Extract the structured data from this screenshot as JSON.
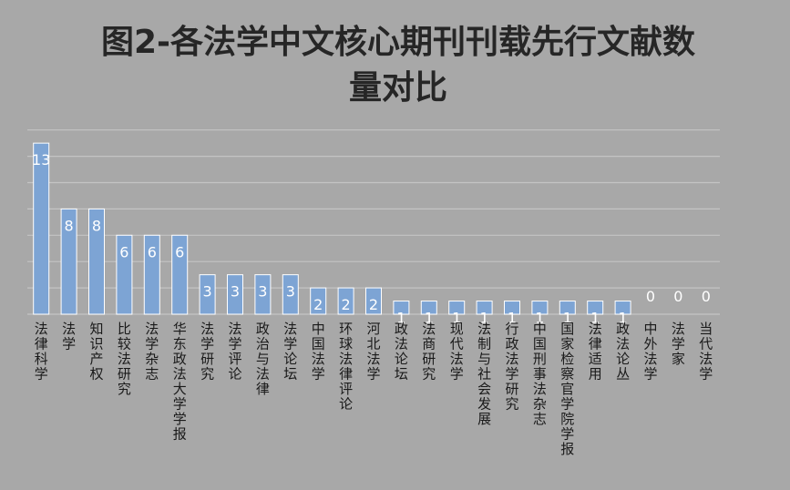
{
  "chart_data": {
    "type": "bar",
    "title": "图2-各法学中文核心期刊刊载先行文献数量对比",
    "title_lines": [
      "图2-各法学中文核心期刊刊载先行文献数",
      "量对比"
    ],
    "categories": [
      "法律科学",
      "法学",
      "知识产权",
      "比较法研究",
      "法学杂志",
      "华东政法大学学报",
      "法学研究",
      "法学评论",
      "政治与法律",
      "法学论坛",
      "中国法学",
      "环球法律评论",
      "河北法学",
      "政法论坛",
      "法商研究",
      "现代法学",
      "法制与社会发展",
      "行政法学研究",
      "中国刑事法杂志",
      "国家检察官学院学报",
      "法律适用",
      "政法论丛",
      "中外法学",
      "法学家",
      "当代法学"
    ],
    "values": [
      13,
      8,
      8,
      6,
      6,
      6,
      3,
      3,
      3,
      3,
      2,
      2,
      2,
      1,
      1,
      1,
      1,
      1,
      1,
      1,
      1,
      1,
      0,
      0,
      0
    ],
    "ylim": [
      0,
      14
    ],
    "grid": true,
    "legend": "none",
    "colors": {
      "background": "#a8a8a8",
      "bar": "#7da4d4",
      "bar_stroke": "#ffffff",
      "grid": "#c4c4c4",
      "title": "#262626",
      "label": "#ffffff",
      "category": "#1a1a1a"
    }
  }
}
